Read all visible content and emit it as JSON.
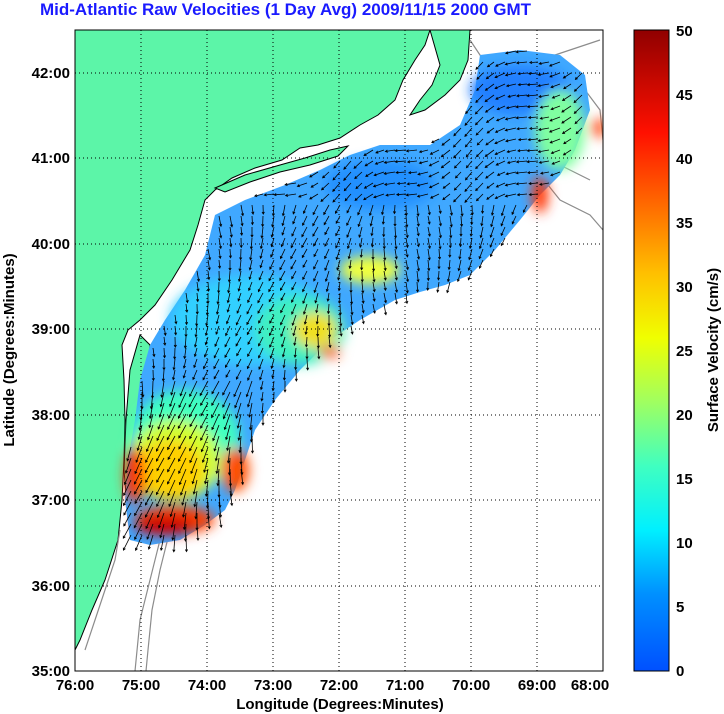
{
  "title": "Mid-Atlantic Raw Velocities (1 Day Avg) 2009/11/15 2000 GMT",
  "xlabel": "Longitude (Degrees:Minutes)",
  "ylabel": "Latitude (Degrees:Minutes)",
  "xticks": [
    "76:00",
    "75:00",
    "74:00",
    "73:00",
    "72:00",
    "71:00",
    "70:00",
    "69:00",
    "68:00"
  ],
  "yticks": [
    "42:00",
    "41:00",
    "40:00",
    "39:00",
    "38:00",
    "37:00",
    "36:00",
    "35:00"
  ],
  "colorbar": {
    "label": "Surface Velocity (cm/s)",
    "ticks": [
      "50",
      "45",
      "40",
      "35",
      "30",
      "25",
      "20",
      "15",
      "10",
      "5",
      "0"
    ],
    "range": [
      0,
      50
    ]
  },
  "colors": {
    "land": "#5cf5a8",
    "title": "#1a1aff",
    "grid": "#000000",
    "bathymetry": "#8c8c8c"
  },
  "map_extent": {
    "lon": [
      -76,
      -68
    ],
    "lat": [
      35,
      42.5
    ]
  }
}
